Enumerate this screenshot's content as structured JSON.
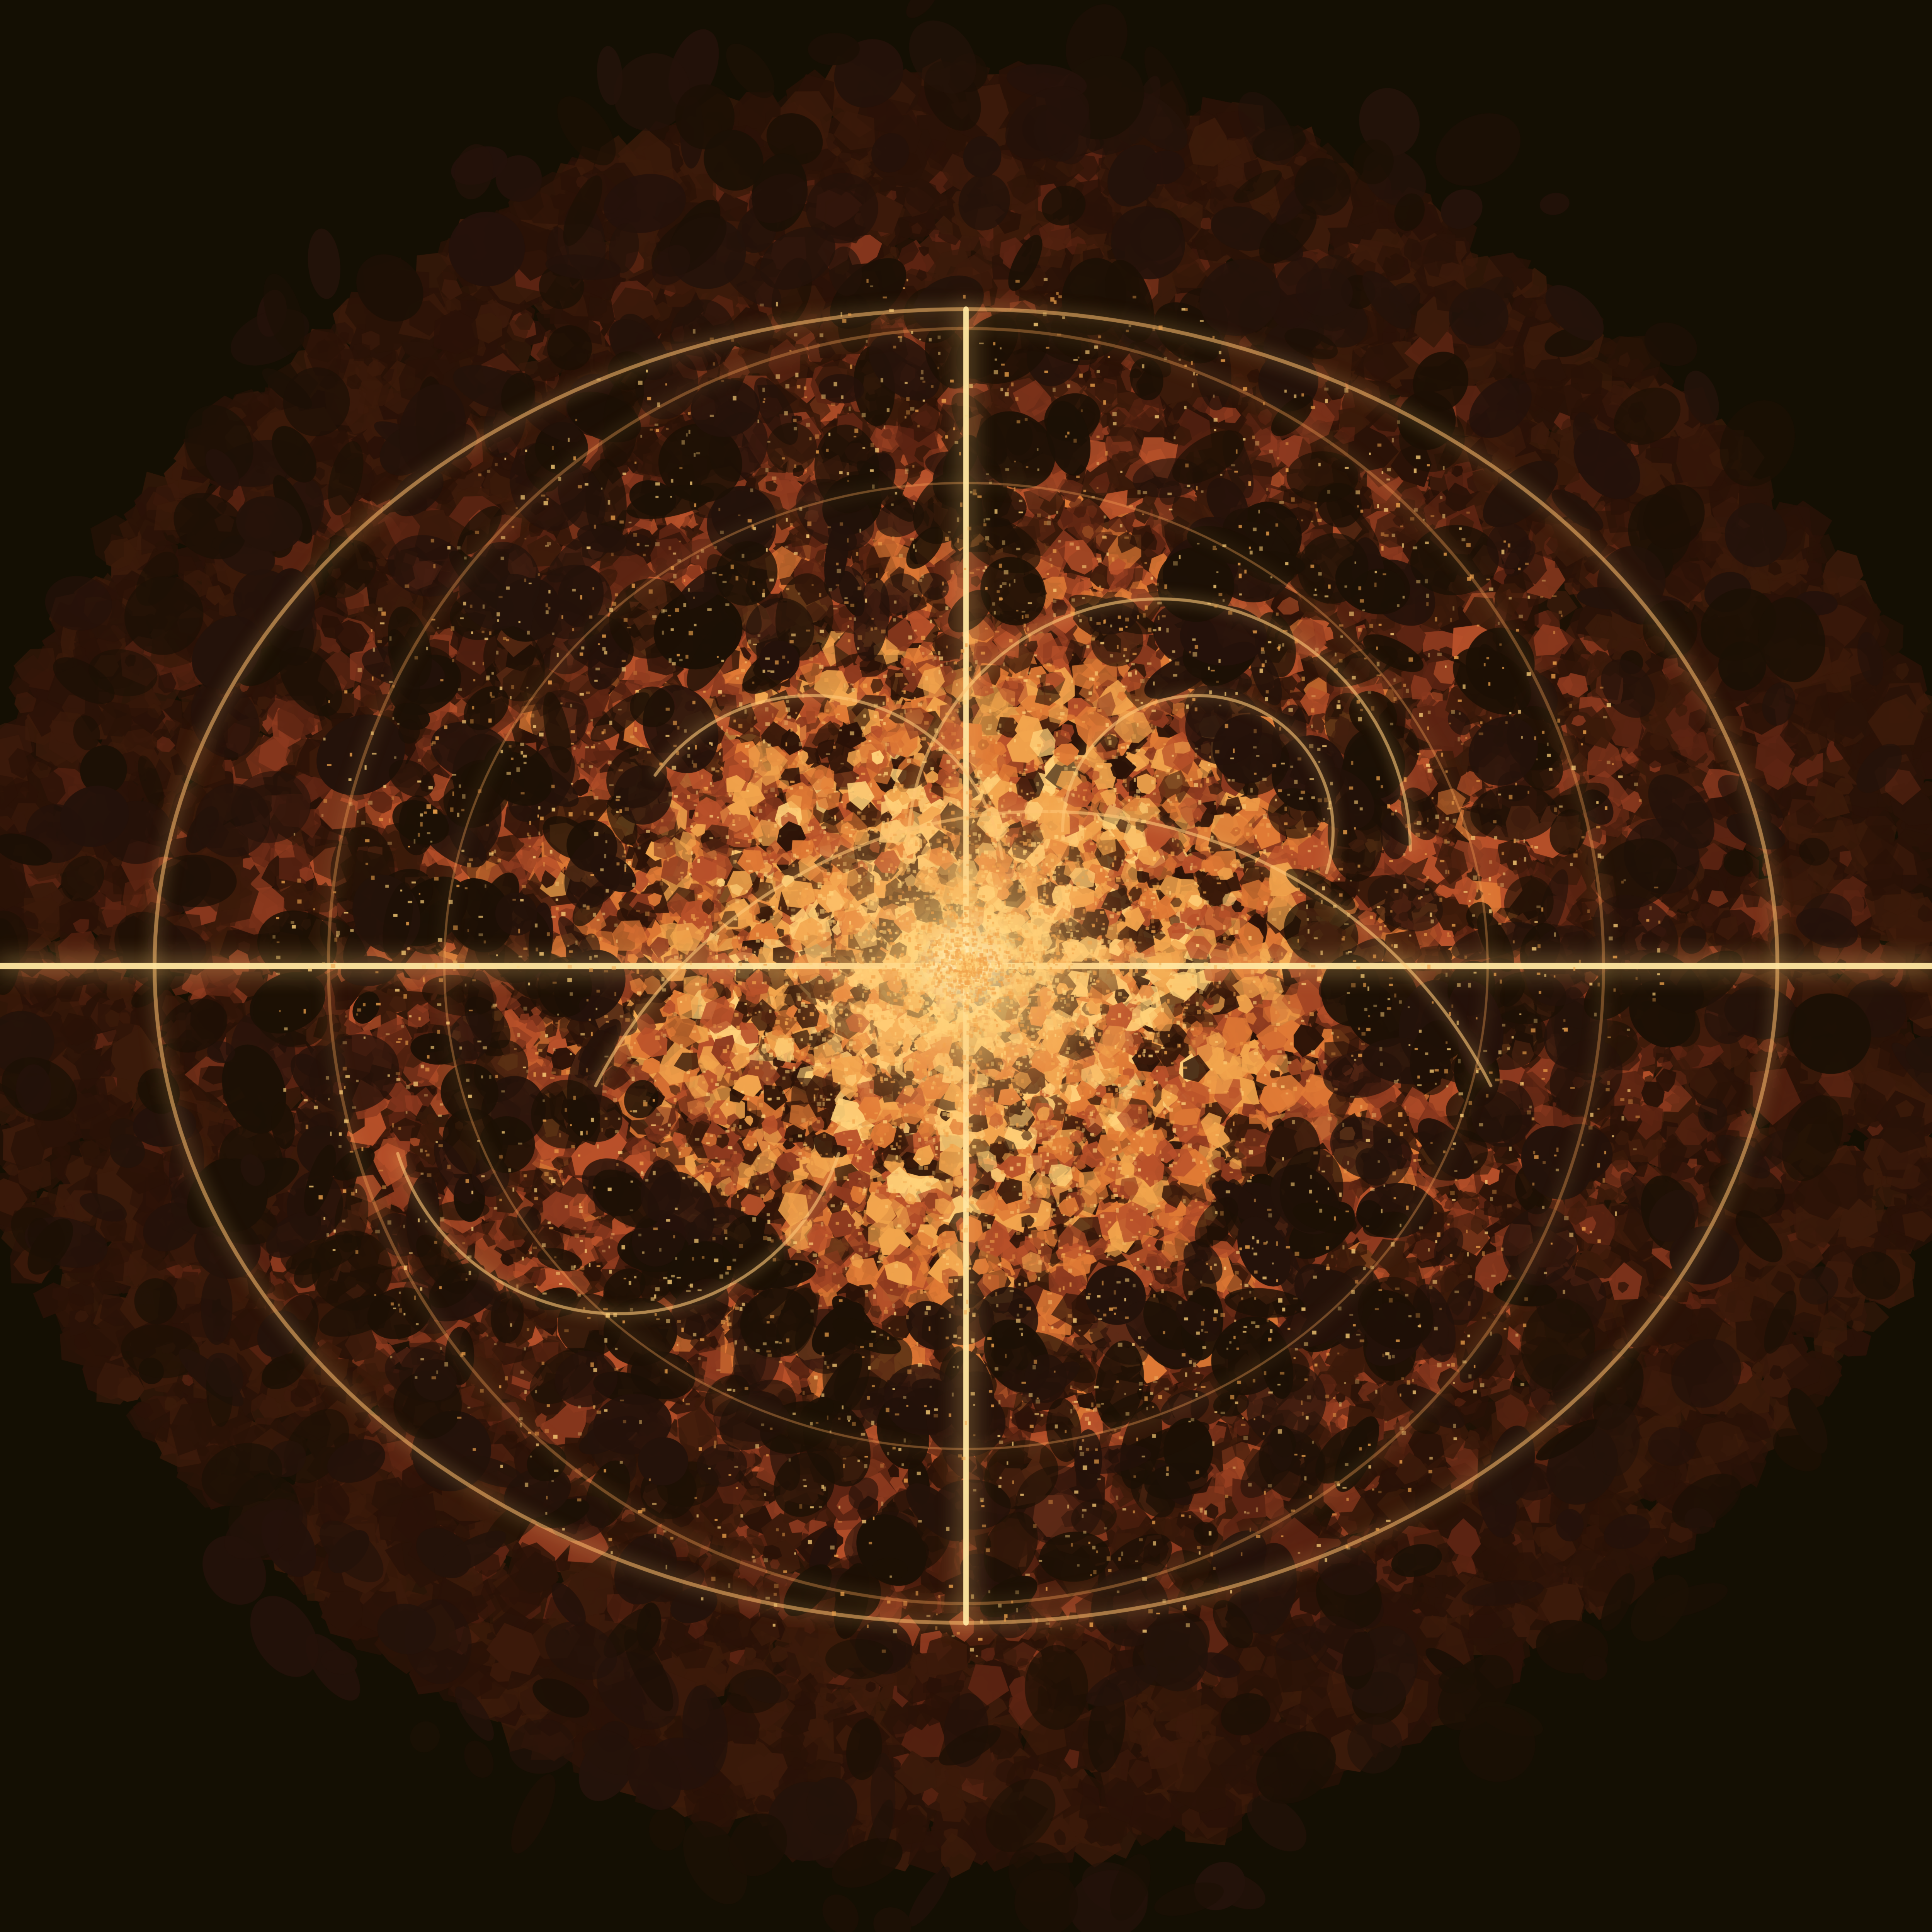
{
  "image": {
    "colors": {
      "background": "#140f03",
      "dark": "#2a1207",
      "deep": "#3b1a0a",
      "maroon": "#5c2412",
      "rust": "#8e3a1f",
      "ember": "#b9512a",
      "orange": "#e07a35",
      "amber": "#f2a54d",
      "gold": "#ffd27a",
      "glow": "#fff0b8"
    }
  }
}
